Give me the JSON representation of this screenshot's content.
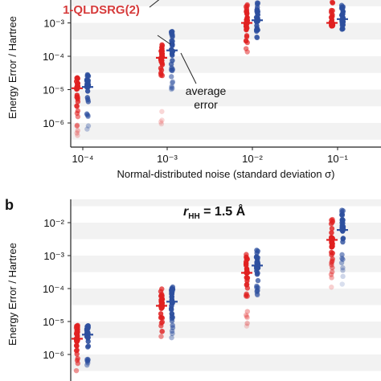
{
  "colors": {
    "red": "#e02020",
    "blue": "#2d4f9e",
    "band": "#f2f2f2",
    "axis": "#222222",
    "annotation_red": "#d63b3b"
  },
  "chart_data": [
    {
      "type": "scatter",
      "panel": "",
      "title": "",
      "xlabel": "Normal-distributed noise (standard deviation σ)",
      "ylabel": "Energy Error / Hartree",
      "xscale": "log",
      "yscale": "log",
      "x_ticks": [
        "10⁻⁴",
        "10⁻³",
        "10⁻²",
        "10⁻¹"
      ],
      "y_ticks": [
        "10⁻⁶",
        "10⁻⁵",
        "10⁻⁴",
        "10⁻³"
      ],
      "ylim": [
        2e-07,
        0.005
      ],
      "grid": "alternating horizontal bands",
      "annotations": [
        "1-QLDSRG(2)",
        "average error"
      ],
      "groups": [
        {
          "noise": 0.0001,
          "red_average": 1.1e-05,
          "blue_average": 1.2e-05,
          "red_range": [
            3e-07,
            2.5e-05
          ],
          "blue_range": [
            5e-07,
            3e-05
          ]
        },
        {
          "noise": 0.001,
          "red_average": 9e-05,
          "blue_average": 0.00015,
          "red_range": [
            9e-07,
            0.00025
          ],
          "blue_range": [
            7e-06,
            0.0006
          ]
        },
        {
          "noise": 0.01,
          "red_average": 0.001,
          "blue_average": 0.0012,
          "red_range": [
            8e-05,
            0.005
          ],
          "blue_range": [
            0.0001,
            0.005
          ]
        },
        {
          "noise": 0.1,
          "red_average": 0.001,
          "blue_average": 0.0013,
          "red_range": [
            0.0008,
            0.005
          ],
          "blue_range": [
            0.0006,
            0.005
          ]
        }
      ]
    },
    {
      "type": "scatter",
      "panel": "b",
      "title": "r_HH = 1.5 Å",
      "title_main": "r",
      "title_sub": "HH",
      "title_rest": " = 1.5 Å",
      "xlabel": "",
      "ylabel": "Energy Error / Hartree",
      "xscale": "log",
      "yscale": "log",
      "x_ticks": [
        "10⁻⁴",
        "10⁻³",
        "10⁻²",
        "10⁻¹"
      ],
      "y_ticks": [
        "10⁻⁶",
        "10⁻⁵",
        "10⁻⁴",
        "10⁻³",
        "10⁻²"
      ],
      "ylim": [
        2e-07,
        0.03
      ],
      "grid": "alternating horizontal bands",
      "groups": [
        {
          "noise": 0.0001,
          "red_average": 3e-06,
          "blue_average": 4e-06,
          "red_range": [
            3e-07,
            8e-06
          ],
          "blue_range": [
            4e-07,
            8e-06
          ]
        },
        {
          "noise": 0.001,
          "red_average": 3e-05,
          "blue_average": 4e-05,
          "red_range": [
            3e-06,
            0.0001
          ],
          "blue_range": [
            3e-06,
            0.00014
          ]
        },
        {
          "noise": 0.01,
          "red_average": 0.0003,
          "blue_average": 0.0005,
          "red_range": [
            7e-06,
            0.0012
          ],
          "blue_range": [
            6e-05,
            0.0015
          ]
        },
        {
          "noise": 0.1,
          "red_average": 0.003,
          "blue_average": 0.006,
          "red_range": [
            0.0001,
            0.015
          ],
          "blue_range": [
            0.00012,
            0.025
          ]
        }
      ]
    }
  ]
}
